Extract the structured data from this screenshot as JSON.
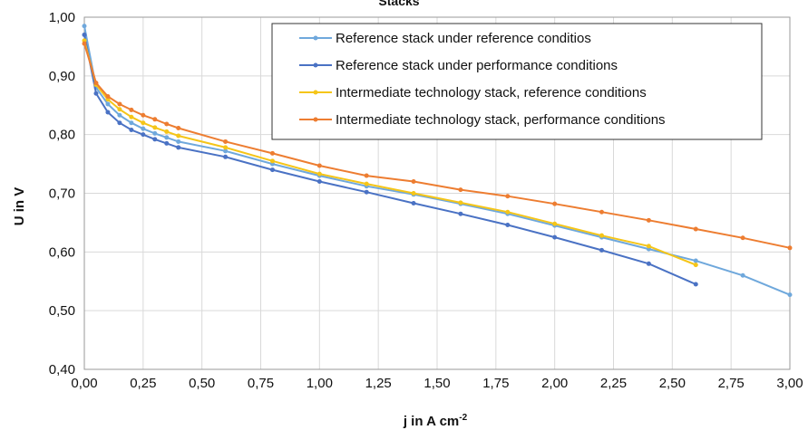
{
  "chart_data": {
    "type": "line",
    "title": "Stacks",
    "xlabel": "j in A cm",
    "xlabel_sup": "-2",
    "ylabel": "U in V",
    "xlim": [
      0,
      3
    ],
    "ylim": [
      0.4,
      1.0
    ],
    "xticks": [
      "0,00",
      "0,25",
      "0,50",
      "0,75",
      "1,00",
      "1,25",
      "1,50",
      "1,75",
      "2,00",
      "2,25",
      "2,50",
      "2,75",
      "3,00"
    ],
    "yticks": [
      "0,40",
      "0,50",
      "0,60",
      "0,70",
      "0,80",
      "0,90",
      "1,00"
    ],
    "grid": true,
    "legend_position": "top-right",
    "series": [
      {
        "name": "Reference stack under reference conditios",
        "color": "#6fa8dc",
        "x": [
          0,
          0.05,
          0.1,
          0.15,
          0.2,
          0.25,
          0.3,
          0.35,
          0.4,
          0.6,
          0.8,
          1.0,
          1.2,
          1.4,
          1.6,
          1.8,
          2.0,
          2.2,
          2.4,
          2.6,
          2.8,
          3.0
        ],
        "y": [
          0.985,
          0.88,
          0.852,
          0.833,
          0.82,
          0.81,
          0.802,
          0.795,
          0.788,
          0.772,
          0.75,
          0.73,
          0.712,
          0.698,
          0.682,
          0.665,
          0.645,
          0.625,
          0.605,
          0.585,
          0.56,
          0.527
        ]
      },
      {
        "name": "Reference stack under performance conditions",
        "color": "#4a72c4",
        "x": [
          0,
          0.05,
          0.1,
          0.15,
          0.2,
          0.25,
          0.3,
          0.35,
          0.4,
          0.6,
          0.8,
          1.0,
          1.2,
          1.4,
          1.6,
          1.8,
          2.0,
          2.2,
          2.4,
          2.6
        ],
        "y": [
          0.97,
          0.87,
          0.838,
          0.82,
          0.808,
          0.8,
          0.792,
          0.785,
          0.778,
          0.762,
          0.74,
          0.72,
          0.702,
          0.683,
          0.665,
          0.646,
          0.625,
          0.603,
          0.58,
          0.545
        ]
      },
      {
        "name": "Intermediate technology stack, reference conditions",
        "color": "#f5c518",
        "x": [
          0,
          0.05,
          0.1,
          0.15,
          0.2,
          0.25,
          0.3,
          0.35,
          0.4,
          0.6,
          0.8,
          1.0,
          1.2,
          1.4,
          1.6,
          1.8,
          2.0,
          2.2,
          2.4,
          2.6
        ],
        "y": [
          0.96,
          0.885,
          0.86,
          0.843,
          0.83,
          0.82,
          0.812,
          0.805,
          0.798,
          0.778,
          0.755,
          0.733,
          0.716,
          0.7,
          0.684,
          0.668,
          0.648,
          0.628,
          0.61,
          0.578
        ]
      },
      {
        "name": "Intermediate technology stack, performance conditions",
        "color": "#ed7d31",
        "x": [
          0,
          0.05,
          0.1,
          0.15,
          0.2,
          0.25,
          0.3,
          0.35,
          0.4,
          0.6,
          0.8,
          1.0,
          1.2,
          1.4,
          1.6,
          1.8,
          2.0,
          2.2,
          2.4,
          2.6,
          2.8,
          3.0
        ],
        "y": [
          0.955,
          0.888,
          0.865,
          0.852,
          0.842,
          0.833,
          0.826,
          0.818,
          0.811,
          0.788,
          0.768,
          0.747,
          0.73,
          0.72,
          0.706,
          0.695,
          0.682,
          0.668,
          0.654,
          0.639,
          0.624,
          0.607
        ]
      }
    ]
  }
}
